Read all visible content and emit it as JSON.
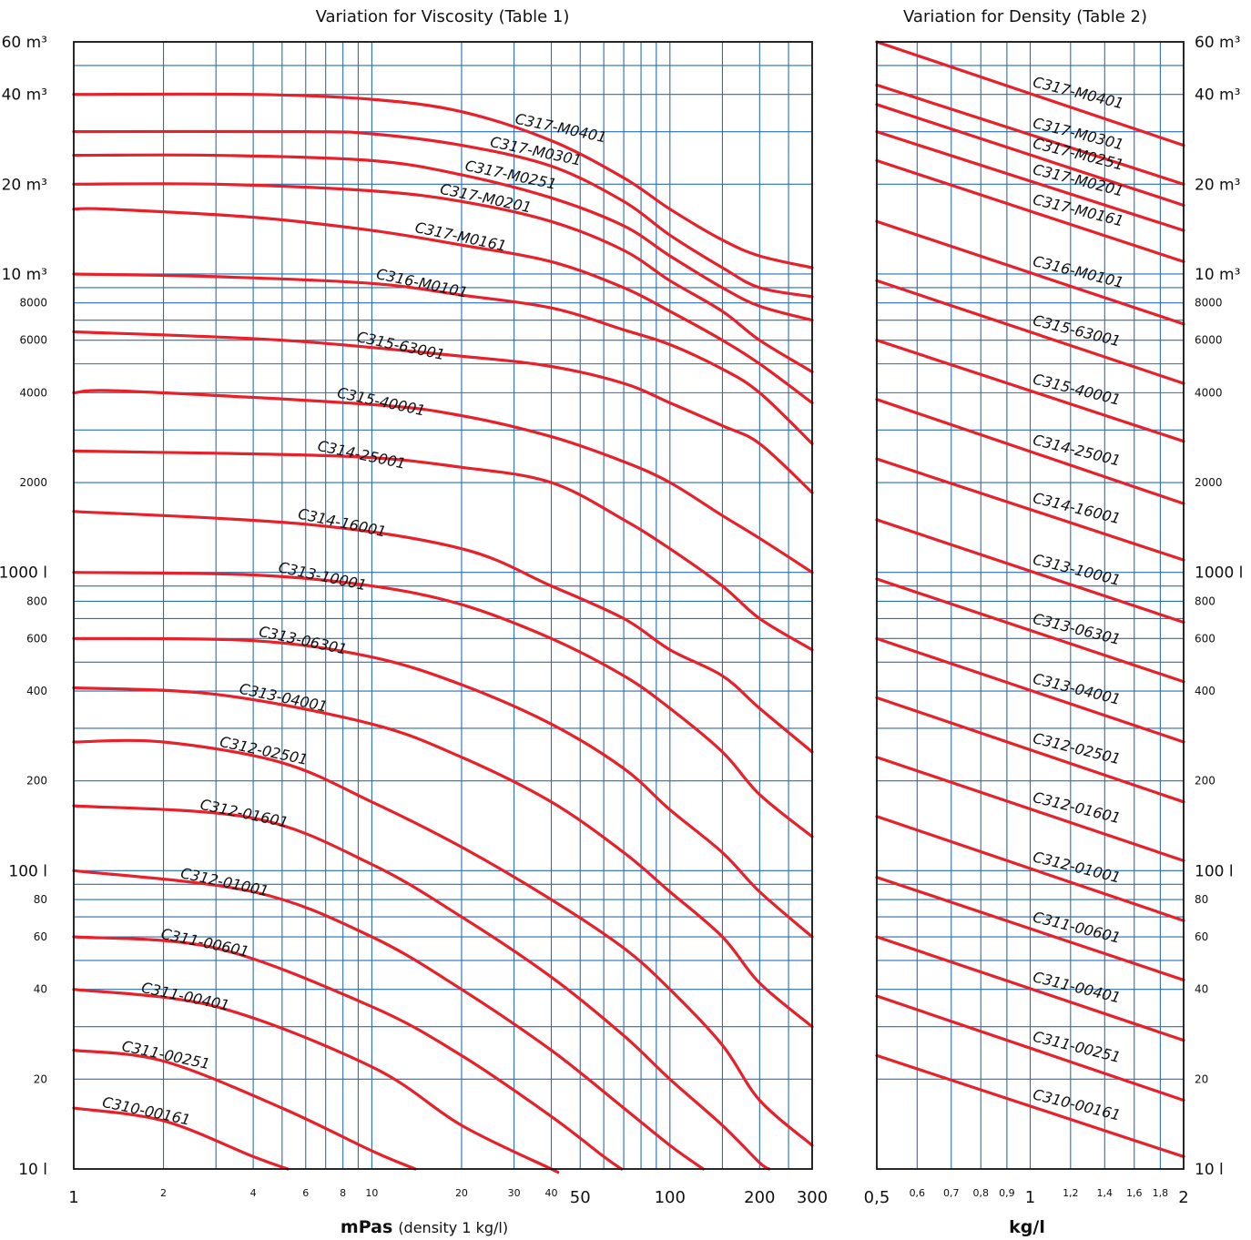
{
  "chart_data": [
    {
      "type": "line",
      "title": "Variation for Viscosity (Table 1)",
      "xlabel": "mPas",
      "xlabel_note": "(density 1 kg/l)",
      "xscale": "log",
      "yscale": "log",
      "xlim": [
        1,
        300
      ],
      "ylim": [
        10,
        60000
      ],
      "grid": true,
      "x_ticks_major": [
        "1",
        "50",
        "100",
        "200",
        "300"
      ],
      "x_ticks_minor": [
        "2",
        "4",
        "6",
        "8",
        "10",
        "20",
        "30",
        "40"
      ],
      "y_ticks_left": [
        "60 m³",
        "40 m³",
        "20 m³",
        "10 m³",
        "8000",
        "6000",
        "4000",
        "2000",
        "1000 l",
        "800",
        "600",
        "400",
        "200",
        "100 l",
        "80",
        "60",
        "40",
        "20",
        "10 l"
      ],
      "series": [
        {
          "name": "C317-M0401",
          "points": [
            [
              1,
              40000
            ],
            [
              4,
              40000
            ],
            [
              10,
              38500
            ],
            [
              20,
              35000
            ],
            [
              40,
              28000
            ],
            [
              70,
              21000
            ],
            [
              100,
              16500
            ],
            [
              150,
              13000
            ],
            [
              200,
              11500
            ],
            [
              300,
              10500
            ]
          ]
        },
        {
          "name": "C317-M0301",
          "points": [
            [
              1,
              30000
            ],
            [
              6,
              30000
            ],
            [
              10,
              29500
            ],
            [
              20,
              27000
            ],
            [
              40,
              23000
            ],
            [
              70,
              17500
            ],
            [
              100,
              13500
            ],
            [
              150,
              10500
            ],
            [
              200,
              9000
            ],
            [
              300,
              8400
            ]
          ]
        },
        {
          "name": "C317-M0251",
          "points": [
            [
              1,
              25000
            ],
            [
              3,
              25000
            ],
            [
              10,
              24000
            ],
            [
              20,
              21500
            ],
            [
              40,
              18000
            ],
            [
              70,
              14500
            ],
            [
              100,
              11500
            ],
            [
              150,
              9000
            ],
            [
              200,
              7800
            ],
            [
              300,
              7000
            ]
          ]
        },
        {
          "name": "C317-M0201",
          "points": [
            [
              1,
              20000
            ],
            [
              3,
              20000
            ],
            [
              10,
              19000
            ],
            [
              20,
              17500
            ],
            [
              40,
              15000
            ],
            [
              70,
              12000
            ],
            [
              100,
              9500
            ],
            [
              150,
              7500
            ],
            [
              200,
              6000
            ],
            [
              300,
              4700
            ]
          ]
        },
        {
          "name": "C317-M0161",
          "points": [
            [
              1,
              16500
            ],
            [
              1.3,
              16500
            ],
            [
              4,
              15500
            ],
            [
              10,
              14000
            ],
            [
              20,
              12500
            ],
            [
              40,
              11000
            ],
            [
              70,
              9000
            ],
            [
              100,
              7500
            ],
            [
              150,
              6000
            ],
            [
              200,
              5000
            ],
            [
              300,
              3700
            ]
          ]
        },
        {
          "name": "C316-M0101",
          "points": [
            [
              1,
              10000
            ],
            [
              3,
              9800
            ],
            [
              10,
              9300
            ],
            [
              20,
              8500
            ],
            [
              40,
              7700
            ],
            [
              70,
              6500
            ],
            [
              100,
              5800
            ],
            [
              150,
              4800
            ],
            [
              200,
              4000
            ],
            [
              300,
              2700
            ]
          ]
        },
        {
          "name": "C315-63001",
          "points": [
            [
              1,
              6400
            ],
            [
              5,
              6000
            ],
            [
              20,
              5300
            ],
            [
              40,
              4900
            ],
            [
              70,
              4300
            ],
            [
              100,
              3700
            ],
            [
              150,
              3100
            ],
            [
              200,
              2700
            ],
            [
              300,
              1850
            ]
          ]
        },
        {
          "name": "C315-40001",
          "points": [
            [
              1,
              4000
            ],
            [
              1.5,
              4050
            ],
            [
              10,
              3650
            ],
            [
              20,
              3350
            ],
            [
              40,
              2850
            ],
            [
              70,
              2350
            ],
            [
              100,
              2000
            ],
            [
              150,
              1550
            ],
            [
              200,
              1300
            ],
            [
              300,
              1000
            ]
          ]
        },
        {
          "name": "C314-25001",
          "points": [
            [
              1,
              2550
            ],
            [
              8,
              2450
            ],
            [
              20,
              2250
            ],
            [
              40,
              2000
            ],
            [
              70,
              1500
            ],
            [
              100,
              1200
            ],
            [
              150,
              900
            ],
            [
              200,
              700
            ],
            [
              300,
              550
            ]
          ]
        },
        {
          "name": "C314-16001",
          "points": [
            [
              1,
              1600
            ],
            [
              6,
              1450
            ],
            [
              20,
              1200
            ],
            [
              40,
              900
            ],
            [
              70,
              700
            ],
            [
              100,
              550
            ],
            [
              150,
              450
            ],
            [
              200,
              350
            ],
            [
              300,
              250
            ]
          ]
        },
        {
          "name": "C313-10001",
          "points": [
            [
              1,
              1000
            ],
            [
              4,
              980
            ],
            [
              10,
              900
            ],
            [
              20,
              780
            ],
            [
              40,
              600
            ],
            [
              70,
              450
            ],
            [
              100,
              350
            ],
            [
              150,
              250
            ],
            [
              200,
              180
            ],
            [
              300,
              130
            ]
          ]
        },
        {
          "name": "C313-06301",
          "points": [
            [
              1,
              600
            ],
            [
              4,
              590
            ],
            [
              10,
              520
            ],
            [
              20,
              420
            ],
            [
              40,
              310
            ],
            [
              70,
              220
            ],
            [
              100,
              160
            ],
            [
              150,
              115
            ],
            [
              200,
              85
            ],
            [
              300,
              60
            ]
          ]
        },
        {
          "name": "C313-04001",
          "points": [
            [
              1,
              410
            ],
            [
              3,
              390
            ],
            [
              10,
              310
            ],
            [
              20,
              240
            ],
            [
              40,
              170
            ],
            [
              70,
              115
            ],
            [
              100,
              85
            ],
            [
              150,
              60
            ],
            [
              200,
              42
            ],
            [
              300,
              30
            ]
          ]
        },
        {
          "name": "C312-02501",
          "points": [
            [
              1,
              270
            ],
            [
              2,
              270
            ],
            [
              5,
              230
            ],
            [
              10,
              170
            ],
            [
              20,
              120
            ],
            [
              40,
              80
            ],
            [
              70,
              55
            ],
            [
              100,
              40
            ],
            [
              150,
              26
            ],
            [
              200,
              17
            ],
            [
              300,
              12
            ]
          ]
        },
        {
          "name": "C312-01601",
          "points": [
            [
              1,
              165
            ],
            [
              4,
              150
            ],
            [
              10,
              105
            ],
            [
              20,
              70
            ],
            [
              40,
              44
            ],
            [
              70,
              28
            ],
            [
              100,
              20
            ],
            [
              150,
              14
            ],
            [
              200,
              10.5
            ],
            [
              300,
              8
            ]
          ]
        },
        {
          "name": "C312-01001",
          "points": [
            [
              1,
              100
            ],
            [
              4,
              85
            ],
            [
              10,
              60
            ],
            [
              20,
              40
            ],
            [
              40,
              25
            ],
            [
              70,
              16
            ],
            [
              100,
              12
            ],
            [
              150,
              9
            ]
          ]
        },
        {
          "name": "C311-00601",
          "points": [
            [
              1,
              60
            ],
            [
              3,
              55
            ],
            [
              10,
              35
            ],
            [
              20,
              24
            ],
            [
              40,
              15
            ],
            [
              60,
              11
            ],
            [
              80,
              9
            ]
          ]
        },
        {
          "name": "C311-00401",
          "points": [
            [
              1,
              40
            ],
            [
              3,
              35
            ],
            [
              10,
              22
            ],
            [
              20,
              14
            ],
            [
              40,
              10
            ],
            [
              50,
              9
            ]
          ]
        },
        {
          "name": "C311-00251",
          "points": [
            [
              1,
              25
            ],
            [
              2,
              23
            ],
            [
              5,
              16
            ],
            [
              10,
              11.5
            ],
            [
              18,
              9
            ]
          ]
        },
        {
          "name": "C310-00161",
          "points": [
            [
              1,
              16
            ],
            [
              2,
              14.5
            ],
            [
              4,
              11
            ],
            [
              7,
              9
            ]
          ]
        }
      ]
    },
    {
      "type": "line",
      "title": "Variation for Density (Table 2)",
      "xlabel": "kg/l",
      "xscale": "log",
      "yscale": "log",
      "xlim": [
        0.5,
        2
      ],
      "ylim": [
        10,
        60000
      ],
      "grid": true,
      "x_ticks_major": [
        "0,5",
        "1",
        "2"
      ],
      "x_ticks_minor": [
        "0,6",
        "0,7",
        "0,8",
        "0,9",
        "1,2",
        "1,4",
        "1,6",
        "1,8"
      ],
      "y_ticks_right": [
        "60 m³",
        "40 m³",
        "20 m³",
        "10 m³",
        "8000",
        "6000",
        "4000",
        "2000",
        "1000 l",
        "800",
        "600",
        "400",
        "200",
        "100 l",
        "80",
        "60",
        "40",
        "20",
        "10 l"
      ],
      "series": [
        {
          "name": "C317-M0401",
          "points": [
            [
              0.5,
              60000
            ],
            [
              2,
              27000
            ]
          ]
        },
        {
          "name": "C317-M0301",
          "points": [
            [
              0.5,
              43000
            ],
            [
              2,
              20000
            ]
          ]
        },
        {
          "name": "C317-M0251",
          "points": [
            [
              0.5,
              37000
            ],
            [
              2,
              17000
            ]
          ]
        },
        {
          "name": "C317-M0201",
          "points": [
            [
              0.5,
              30000
            ],
            [
              2,
              14000
            ]
          ]
        },
        {
          "name": "C317-M0161",
          "points": [
            [
              0.5,
              24000
            ],
            [
              2,
              11000
            ]
          ]
        },
        {
          "name": "C316-M0101",
          "points": [
            [
              0.5,
              15000
            ],
            [
              2,
              6800
            ]
          ]
        },
        {
          "name": "C315-63001",
          "points": [
            [
              0.5,
              9500
            ],
            [
              2,
              4300
            ]
          ]
        },
        {
          "name": "C315-40001",
          "points": [
            [
              0.5,
              6000
            ],
            [
              2,
              2750
            ]
          ]
        },
        {
          "name": "C314-25001",
          "points": [
            [
              0.5,
              3800
            ],
            [
              2,
              1700
            ]
          ]
        },
        {
          "name": "C314-16001",
          "points": [
            [
              0.5,
              2400
            ],
            [
              2,
              1100
            ]
          ]
        },
        {
          "name": "C313-10001",
          "points": [
            [
              0.5,
              1500
            ],
            [
              2,
              680
            ]
          ]
        },
        {
          "name": "C313-06301",
          "points": [
            [
              0.5,
              950
            ],
            [
              2,
              430
            ]
          ]
        },
        {
          "name": "C313-04001",
          "points": [
            [
              0.5,
              600
            ],
            [
              2,
              270
            ]
          ]
        },
        {
          "name": "C312-02501",
          "points": [
            [
              0.5,
              380
            ],
            [
              2,
              170
            ]
          ]
        },
        {
          "name": "C312-01601",
          "points": [
            [
              0.5,
              240
            ],
            [
              2,
              108
            ]
          ]
        },
        {
          "name": "C312-01001",
          "points": [
            [
              0.5,
              152
            ],
            [
              2,
              68
            ]
          ]
        },
        {
          "name": "C311-00601",
          "points": [
            [
              0.5,
              95
            ],
            [
              2,
              43
            ]
          ]
        },
        {
          "name": "C311-00401",
          "points": [
            [
              0.5,
              60
            ],
            [
              2,
              27
            ]
          ]
        },
        {
          "name": "C311-00251",
          "points": [
            [
              0.5,
              38
            ],
            [
              2,
              17
            ]
          ]
        },
        {
          "name": "C310-00161",
          "points": [
            [
              0.5,
              24
            ],
            [
              2,
              11
            ]
          ]
        }
      ]
    }
  ]
}
